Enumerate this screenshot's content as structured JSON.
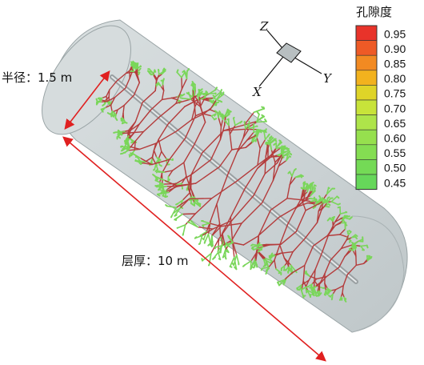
{
  "annotations": {
    "radius_label": "半径：1.5 m",
    "thickness_label": "层厚：10 m"
  },
  "axes": {
    "z": "Z",
    "y": "Y",
    "x": "X"
  },
  "legend": {
    "title": "孔隙度",
    "ticks": [
      "0.95",
      "0.90",
      "0.85",
      "0.80",
      "0.75",
      "0.70",
      "0.65",
      "0.60",
      "0.55",
      "0.50",
      "0.45"
    ],
    "colors": [
      "#e8332a",
      "#ee5a26",
      "#f28a22",
      "#f2b21e",
      "#dfd428",
      "#c8e33a",
      "#aee44a",
      "#96e04e",
      "#84dd52",
      "#74da56",
      "#66d75a"
    ]
  },
  "colors": {
    "cylinder": "#cfd6d8",
    "cylinder_edge": "#9aa4a6",
    "dimension_arrow": "#e02020",
    "fracture_branch": "#b43c3c",
    "fracture_tip": "#7ad65a"
  }
}
